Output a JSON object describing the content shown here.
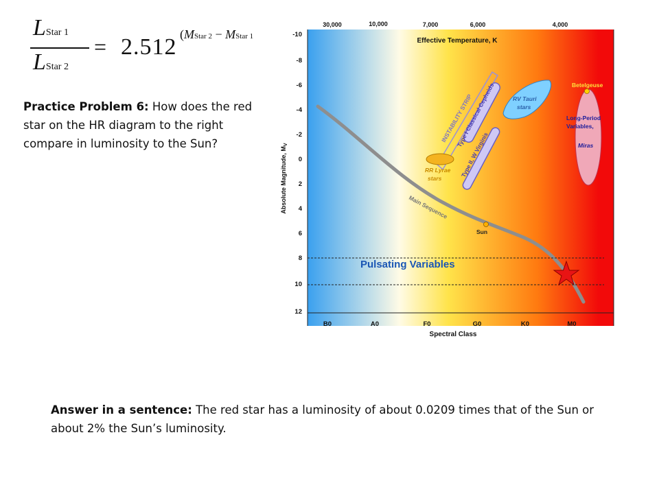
{
  "formula": {
    "L": "L",
    "star1": "Star 1",
    "star2": "Star  2",
    "equals": "=",
    "base": "2.512",
    "exp_open": "(",
    "M": "M",
    "minus": " − ",
    "exp_star2": "Star 2",
    "exp_star1": "Star 1"
  },
  "problem": {
    "label": "Practice Problem 6:",
    "text": " How does the red star on the HR diagram to the right compare in luminosity to the Sun?"
  },
  "answer": {
    "label": "Answer in a sentence:",
    "text": "  The red star has a luminosity of about 0.0209 times that of the Sun or about 2% the Sun’s luminosity."
  },
  "hr_diagram": {
    "temperature_title": "Effective Temperature, K",
    "temperature_ticks": [
      "30,000",
      "10,000",
      "7,000",
      "6,000",
      "4,000"
    ],
    "magnitude_title": "Absolute Magnitude, M",
    "magnitude_subscript": "V",
    "magnitude_ticks": [
      "-10",
      "-8",
      "-6",
      "-4",
      "-2",
      "0",
      "2",
      "4",
      "6",
      "8",
      "10",
      "12"
    ],
    "spectral_title": "Spectral Class",
    "spectral_ticks": [
      "B0",
      "A0",
      "F0",
      "G0",
      "K0",
      "M0"
    ],
    "labels": {
      "instability_strip": "INSTABILITY STRIP",
      "cepheids": "Type I Classical Cepheids",
      "w_virginis": "Type II, W Virginis",
      "rr_lyrae_1": "RR Lyrae",
      "rr_lyrae_2": "stars",
      "rv_tauri_1": "RV Tauri",
      "rv_tauri_2": "stars",
      "betelgeuse": "Betelgeuse",
      "lpv_1": "Long-Period",
      "lpv_2": "Variables,",
      "miras": "Miras",
      "main_sequence": "Main Sequence",
      "sun": "Sun",
      "pulsating": "Pulsating Variables"
    },
    "colors": {
      "blue": "#3aa0ef",
      "white": "#fffbe6",
      "yellow": "#ffe34a",
      "orange": "#ff7a10",
      "red": "#f20a0a",
      "strip_fill": "#cfc8f5",
      "rr_lyrae_fill": "#f4b320",
      "rv_tauri_fill": "#7fd0ff",
      "lpv_fill": "#f0a8b8",
      "star": "#e81414",
      "main_sequence": "#8e8e8e",
      "pulsating_text": "#1a56b4"
    }
  }
}
